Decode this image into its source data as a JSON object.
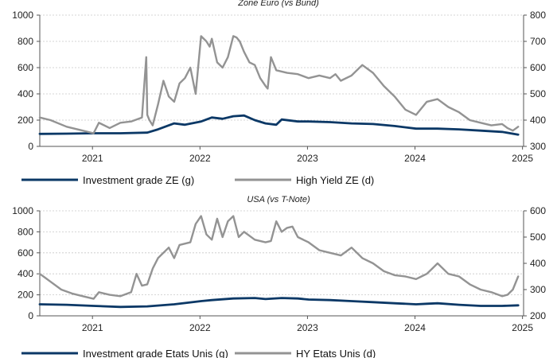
{
  "chart_data": [
    {
      "type": "line",
      "title": "Zone Euro (vs Bund)",
      "x_ticks": [
        "2021",
        "2022",
        "2023",
        "2024",
        "2025"
      ],
      "y_left": {
        "lim": [
          0,
          1000
        ],
        "ticks": [
          "0",
          "200",
          "400",
          "600",
          "800",
          "1000"
        ]
      },
      "y_right": {
        "lim": [
          300,
          800
        ],
        "ticks": [
          "300",
          "400",
          "500",
          "600",
          "700",
          "800"
        ]
      },
      "grid": true,
      "legend": "bottom",
      "series": [
        {
          "name": "Investment grade ZE (g)",
          "axis": "left",
          "color": "#0b3866",
          "x": [
            2020.5,
            2020.75,
            2021.0,
            2021.25,
            2021.5,
            2021.6,
            2021.75,
            2021.85,
            2022.0,
            2022.1,
            2022.2,
            2022.3,
            2022.4,
            2022.5,
            2022.6,
            2022.7,
            2022.75,
            2022.9,
            2023.0,
            2023.2,
            2023.4,
            2023.6,
            2023.8,
            2024.0,
            2024.2,
            2024.4,
            2024.6,
            2024.8,
            2024.95
          ],
          "y": [
            95,
            97,
            100,
            100,
            105,
            130,
            175,
            165,
            190,
            220,
            210,
            230,
            235,
            200,
            175,
            165,
            205,
            190,
            190,
            185,
            175,
            170,
            155,
            135,
            135,
            130,
            120,
            110,
            90
          ]
        },
        {
          "name": "High Yield ZE (d)",
          "axis": "right",
          "color": "#939393",
          "x": [
            2020.5,
            2020.6,
            2020.75,
            2020.9,
            2021.0,
            2021.05,
            2021.15,
            2021.25,
            2021.35,
            2021.45,
            2021.49,
            2021.5,
            2021.52,
            2021.55,
            2021.6,
            2021.65,
            2021.7,
            2021.75,
            2021.8,
            2021.85,
            2021.9,
            2021.95,
            2022.0,
            2022.05,
            2022.08,
            2022.1,
            2022.15,
            2022.2,
            2022.25,
            2022.3,
            2022.33,
            2022.36,
            2022.4,
            2022.45,
            2022.5,
            2022.55,
            2022.6,
            2022.62,
            2022.65,
            2022.7,
            2022.8,
            2022.9,
            2023.0,
            2023.1,
            2023.2,
            2023.25,
            2023.3,
            2023.4,
            2023.5,
            2023.6,
            2023.7,
            2023.8,
            2023.9,
            2024.0,
            2024.1,
            2024.2,
            2024.3,
            2024.4,
            2024.5,
            2024.6,
            2024.7,
            2024.8,
            2024.85,
            2024.9,
            2024.95
          ],
          "y": [
            410,
            400,
            375,
            360,
            350,
            390,
            370,
            390,
            395,
            410,
            640,
            420,
            400,
            380,
            460,
            550,
            490,
            470,
            540,
            560,
            600,
            500,
            720,
            700,
            680,
            710,
            620,
            600,
            640,
            720,
            715,
            700,
            660,
            620,
            610,
            560,
            530,
            520,
            640,
            590,
            580,
            575,
            560,
            570,
            560,
            575,
            550,
            570,
            610,
            580,
            530,
            490,
            440,
            420,
            470,
            480,
            450,
            430,
            400,
            390,
            380,
            385,
            370,
            360,
            375
          ]
        }
      ]
    },
    {
      "type": "line",
      "title": "USA (vs T-Note)",
      "x_ticks": [
        "2021",
        "2022",
        "2023",
        "2024",
        "2025"
      ],
      "y_left": {
        "lim": [
          0,
          1000
        ],
        "ticks": [
          "0",
          "200",
          "400",
          "600",
          "800",
          "1000"
        ]
      },
      "y_right": {
        "lim": [
          200,
          600
        ],
        "ticks": [
          "200",
          "300",
          "400",
          "500",
          "600"
        ]
      },
      "grid": true,
      "legend": "bottom",
      "series": [
        {
          "name": "Investment grade Etats Unis (g)",
          "axis": "left",
          "color": "#0b3866",
          "x": [
            2020.5,
            2020.75,
            2021.0,
            2021.25,
            2021.5,
            2021.75,
            2022.0,
            2022.1,
            2022.3,
            2022.5,
            2022.6,
            2022.75,
            2022.9,
            2023.0,
            2023.2,
            2023.4,
            2023.6,
            2023.8,
            2024.0,
            2024.1,
            2024.2,
            2024.4,
            2024.6,
            2024.8,
            2024.95
          ],
          "y": [
            110,
            105,
            95,
            85,
            90,
            110,
            140,
            150,
            165,
            170,
            160,
            170,
            165,
            155,
            150,
            140,
            130,
            120,
            110,
            115,
            120,
            105,
            95,
            95,
            100
          ]
        },
        {
          "name": "HY Etats Unis (d)",
          "axis": "right",
          "color": "#939393",
          "x": [
            2020.5,
            2020.55,
            2020.6,
            2020.7,
            2020.8,
            2020.9,
            2021.0,
            2021.05,
            2021.15,
            2021.25,
            2021.35,
            2021.4,
            2021.45,
            2021.5,
            2021.55,
            2021.6,
            2021.7,
            2021.75,
            2021.8,
            2021.9,
            2021.95,
            2022.0,
            2022.05,
            2022.1,
            2022.15,
            2022.2,
            2022.25,
            2022.3,
            2022.35,
            2022.4,
            2022.5,
            2022.6,
            2022.65,
            2022.7,
            2022.75,
            2022.8,
            2022.85,
            2022.9,
            2023.0,
            2023.1,
            2023.2,
            2023.3,
            2023.4,
            2023.5,
            2023.6,
            2023.7,
            2023.8,
            2023.9,
            2024.0,
            2024.05,
            2024.1,
            2024.15,
            2024.2,
            2024.3,
            2024.4,
            2024.5,
            2024.6,
            2024.7,
            2024.8,
            2024.85,
            2024.9,
            2024.95
          ],
          "y": [
            360,
            345,
            330,
            300,
            285,
            275,
            265,
            290,
            280,
            275,
            290,
            360,
            315,
            320,
            380,
            420,
            460,
            420,
            470,
            480,
            550,
            580,
            510,
            490,
            570,
            500,
            560,
            580,
            500,
            520,
            490,
            480,
            485,
            560,
            520,
            535,
            540,
            500,
            480,
            450,
            440,
            430,
            460,
            420,
            400,
            370,
            355,
            350,
            340,
            350,
            360,
            380,
            400,
            360,
            350,
            320,
            300,
            290,
            275,
            280,
            300,
            350
          ]
        }
      ]
    }
  ]
}
